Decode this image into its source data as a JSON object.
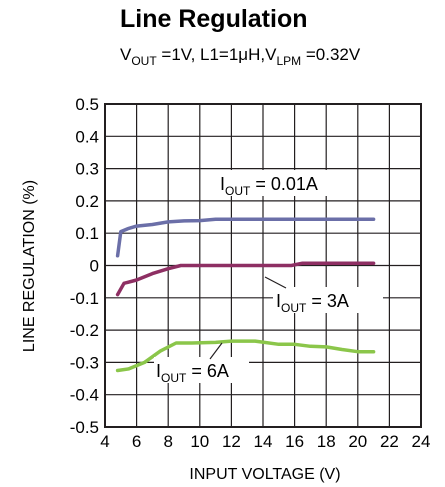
{
  "chart_data": {
    "type": "line",
    "title": "Line Regulation",
    "subtitle": {
      "parts": [
        {
          "text": "V",
          "sub": false
        },
        {
          "text": "OUT",
          "sub": true
        },
        {
          "text": " =1V, L1=1μH,V",
          "sub": false
        },
        {
          "text": "LPM",
          "sub": true
        },
        {
          "text": " =0.32V",
          "sub": false
        }
      ]
    },
    "xlabel": "INPUT VOLTAGE (V)",
    "ylabel": "LINE REGULATION (%)",
    "xlim": [
      4,
      24
    ],
    "ylim": [
      -0.5,
      0.5
    ],
    "xticks": [
      4,
      6,
      8,
      10,
      12,
      14,
      16,
      18,
      20,
      22,
      24
    ],
    "yticks": [
      0.5,
      0.4,
      0.3,
      0.2,
      0.1,
      0,
      -0.1,
      -0.2,
      -0.3,
      -0.4,
      -0.5
    ],
    "xtick_labels": [
      "4",
      "6",
      "8",
      "10",
      "12",
      "14",
      "16",
      "18",
      "20",
      "22",
      "24"
    ],
    "ytick_labels": [
      "0.5",
      "0.4",
      "0.3",
      "0.2",
      "0.1",
      "0",
      "-0.1",
      "-0.2",
      "-0.3",
      "-0.4",
      "-0.5"
    ],
    "grid": true,
    "series": [
      {
        "label": {
          "main": "I",
          "sub": "OUT",
          "rest": " = 0.01A"
        },
        "color": "#6b6fa8",
        "points": [
          [
            4.8,
            0.03
          ],
          [
            5.0,
            0.105
          ],
          [
            5.5,
            0.115
          ],
          [
            6.0,
            0.122
          ],
          [
            7.0,
            0.127
          ],
          [
            8.0,
            0.135
          ],
          [
            9.0,
            0.138
          ],
          [
            10.0,
            0.139
          ],
          [
            11.0,
            0.143
          ],
          [
            12.0,
            0.143
          ],
          [
            14.0,
            0.143
          ],
          [
            16.0,
            0.143
          ],
          [
            18.0,
            0.143
          ],
          [
            21.0,
            0.143
          ]
        ]
      },
      {
        "label": {
          "main": "I",
          "sub": "OUT",
          "rest": " = 3A"
        },
        "color": "#8e2f63",
        "points": [
          [
            4.8,
            -0.09
          ],
          [
            5.2,
            -0.055
          ],
          [
            6.0,
            -0.045
          ],
          [
            7.0,
            -0.025
          ],
          [
            8.0,
            -0.01
          ],
          [
            8.8,
            0.0
          ],
          [
            10.0,
            0.0
          ],
          [
            12.0,
            0.0
          ],
          [
            14.0,
            0.0
          ],
          [
            15.8,
            0.0
          ],
          [
            16.5,
            0.007
          ],
          [
            18.0,
            0.007
          ],
          [
            21.0,
            0.007
          ]
        ]
      },
      {
        "label": {
          "main": "I",
          "sub": "OUT",
          "rest": " = 6A"
        },
        "color": "#8bc64a",
        "points": [
          [
            4.8,
            -0.325
          ],
          [
            5.5,
            -0.32
          ],
          [
            6.5,
            -0.3
          ],
          [
            7.5,
            -0.265
          ],
          [
            8.5,
            -0.24
          ],
          [
            9.5,
            -0.24
          ],
          [
            11.0,
            -0.238
          ],
          [
            12.0,
            -0.234
          ],
          [
            13.5,
            -0.234
          ],
          [
            15.0,
            -0.244
          ],
          [
            16.0,
            -0.244
          ],
          [
            17.0,
            -0.25
          ],
          [
            18.0,
            -0.252
          ],
          [
            19.0,
            -0.26
          ],
          [
            20.0,
            -0.267
          ],
          [
            21.0,
            -0.267
          ]
        ]
      }
    ]
  }
}
